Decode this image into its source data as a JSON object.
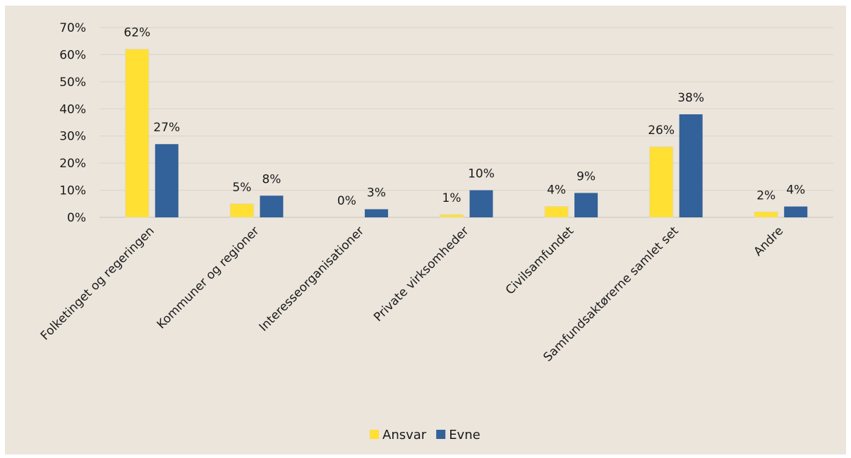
{
  "chart_data": {
    "type": "bar",
    "categories": [
      "Folketinget og regeringen",
      "Kommuner og regioner",
      "Interesseorganisationer",
      "Private virksomheder",
      "Civilsamfundet",
      "Samfundsaktørerne samlet set",
      "Andre"
    ],
    "series": [
      {
        "name": "Ansvar",
        "color": "#ffe033",
        "values": [
          62,
          5,
          0,
          1,
          4,
          26,
          2
        ],
        "labels": [
          "62%",
          "5%",
          "0%",
          "1%",
          "4%",
          "26%",
          "2%"
        ]
      },
      {
        "name": "Evne",
        "color": "#336199",
        "values": [
          27,
          8,
          3,
          10,
          9,
          38,
          4
        ],
        "labels": [
          "27%",
          "8%",
          "3%",
          "10%",
          "9%",
          "38%",
          "4%"
        ]
      }
    ],
    "yticks": [
      "0%",
      "10%",
      "20%",
      "30%",
      "40%",
      "50%",
      "60%",
      "70%"
    ],
    "ylim": [
      0,
      70
    ],
    "grid": true,
    "legend": "bottom-center",
    "background": "#ebe5dc"
  }
}
